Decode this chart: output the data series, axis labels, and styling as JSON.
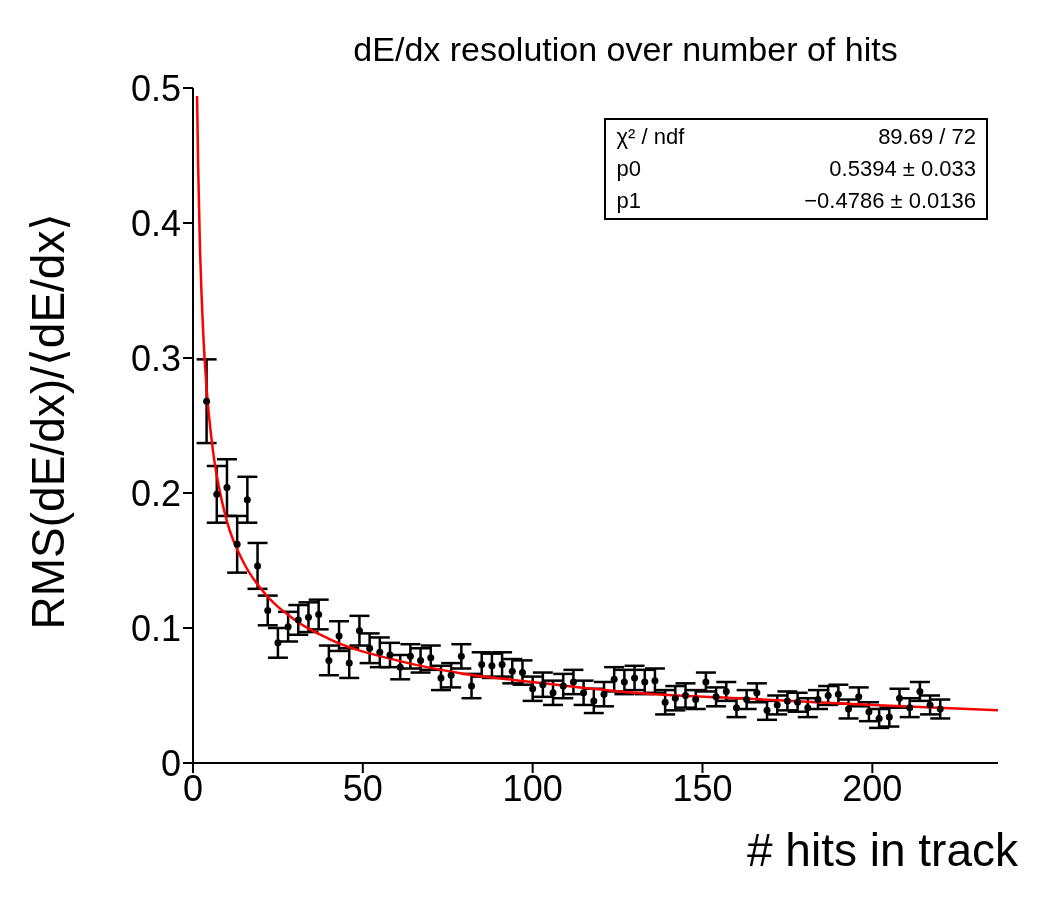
{
  "chart_data": {
    "type": "scatter",
    "title": "dE/dx resolution over number of hits",
    "xlabel": "# hits in track",
    "ylabel": "RMS(dE/dx)/⟨dE/dx⟩",
    "xlim": [
      0,
      237
    ],
    "xticks": [
      0,
      50,
      100,
      150,
      200
    ],
    "ylim": [
      0,
      0.5
    ],
    "yticks": [
      0,
      0.1,
      0.2,
      0.3,
      0.4,
      0.5
    ],
    "marker": "circle",
    "annotations": [
      "χ² / ndf",
      "89.69 / 72",
      "p0",
      "0.5394 ± 0.033",
      "p1",
      "−0.4786 ± 0.0136"
    ],
    "series": [
      {
        "color": "#000000",
        "x": [
          4,
          7,
          10,
          13,
          16,
          19,
          22,
          25,
          28,
          31,
          34,
          37,
          40,
          43,
          46,
          49,
          52,
          55,
          58,
          61,
          64,
          67,
          70,
          73,
          76,
          79,
          82,
          85,
          88,
          91,
          94,
          97,
          100,
          103,
          106,
          109,
          112,
          115,
          118,
          121,
          124,
          127,
          130,
          133,
          136,
          139,
          142,
          145,
          148,
          151,
          154,
          157,
          160,
          163,
          166,
          169,
          172,
          175,
          178,
          181,
          184,
          187,
          190,
          193,
          196,
          199,
          202,
          205,
          208,
          211,
          214,
          217,
          220
        ],
        "values": [
          0.268,
          0.199,
          0.204,
          0.162,
          0.195,
          0.146,
          0.113,
          0.089,
          0.101,
          0.106,
          0.108,
          0.11,
          0.076,
          0.094,
          0.074,
          0.098,
          0.085,
          0.082,
          0.08,
          0.071,
          0.079,
          0.076,
          0.078,
          0.063,
          0.065,
          0.079,
          0.057,
          0.073,
          0.072,
          0.073,
          0.068,
          0.067,
          0.055,
          0.058,
          0.052,
          0.057,
          0.06,
          0.052,
          0.046,
          0.051,
          0.062,
          0.06,
          0.063,
          0.06,
          0.061,
          0.045,
          0.048,
          0.05,
          0.047,
          0.06,
          0.049,
          0.053,
          0.041,
          0.047,
          0.052,
          0.039,
          0.043,
          0.046,
          0.045,
          0.041,
          0.047,
          0.05,
          0.051,
          0.04,
          0.049,
          0.038,
          0.033,
          0.034,
          0.048,
          0.041,
          0.053,
          0.043,
          0.04
        ],
        "errors": [
          0.031,
          0.021,
          0.021,
          0.021,
          0.017,
          0.017,
          0.011,
          0.011,
          0.011,
          0.011,
          0.011,
          0.011,
          0.011,
          0.011,
          0.011,
          0.011,
          0.011,
          0.011,
          0.009,
          0.009,
          0.009,
          0.009,
          0.009,
          0.009,
          0.009,
          0.009,
          0.009,
          0.009,
          0.009,
          0.009,
          0.009,
          0.009,
          0.009,
          0.009,
          0.009,
          0.009,
          0.009,
          0.009,
          0.009,
          0.009,
          0.009,
          0.009,
          0.009,
          0.009,
          0.009,
          0.009,
          0.009,
          0.009,
          0.007,
          0.007,
          0.007,
          0.007,
          0.007,
          0.007,
          0.007,
          0.007,
          0.007,
          0.007,
          0.007,
          0.007,
          0.007,
          0.007,
          0.007,
          0.007,
          0.007,
          0.007,
          0.007,
          0.007,
          0.007,
          0.007,
          0.007,
          0.007,
          0.007
        ]
      },
      {
        "type": "line",
        "color": "#ff0000",
        "marker": "none",
        "x": [
          1.2,
          1.5,
          2,
          3,
          4,
          6,
          8,
          10,
          15,
          20,
          30,
          40,
          60,
          80,
          100,
          130,
          160,
          200,
          237
        ],
        "values": [
          0.494,
          0.444,
          0.387,
          0.319,
          0.278,
          0.229,
          0.2,
          0.179,
          0.148,
          0.129,
          0.106,
          0.092,
          0.076,
          0.066,
          0.06,
          0.052,
          0.048,
          0.043,
          0.039
        ]
      }
    ]
  }
}
